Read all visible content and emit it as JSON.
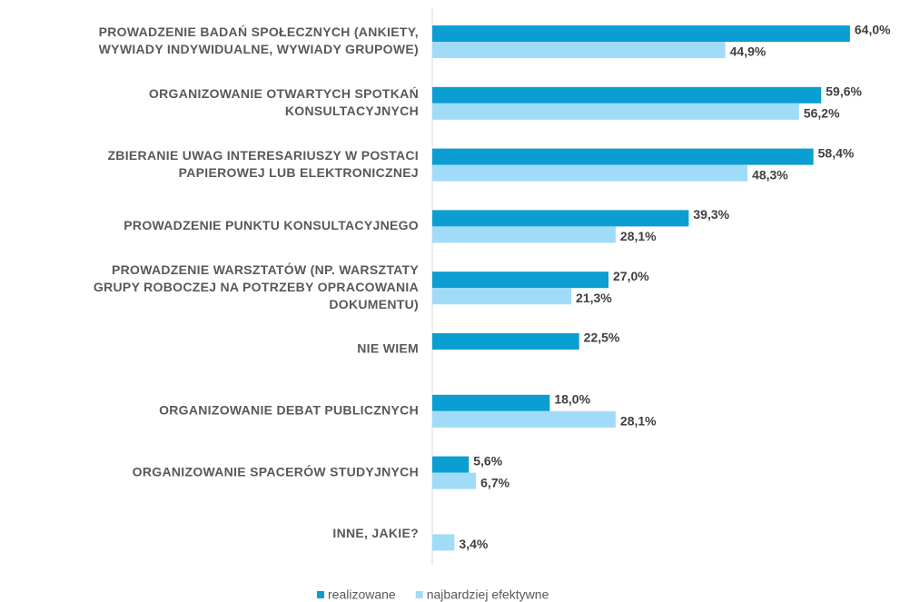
{
  "chart_data": {
    "type": "hbar",
    "categories": [
      [
        "PROWADZENIE BADAŃ SPOŁECZNYCH (ANKIETY,",
        "WYWIADY INDYWIDUALNE, WYWIADY GRUPOWE)"
      ],
      [
        "ORGANIZOWANIE OTWARTYCH SPOTKAŃ",
        "KONSULTACYJNYCH"
      ],
      [
        "ZBIERANIE UWAG INTERESARIUSZY W POSTACI",
        "PAPIEROWEJ LUB ELEKTRONICZNEJ"
      ],
      [
        "PROWADZENIE PUNKTU KONSULTACYJNEGO"
      ],
      [
        "PROWADZENIE WARSZTATÓW (NP. WARSZTATY",
        "GRUPY ROBOCZEJ NA POTRZEBY OPRACOWANIA",
        "DOKUMENTU)"
      ],
      [
        "NIE WIEM"
      ],
      [
        "ORGANIZOWANIE DEBAT PUBLICZNYCH"
      ],
      [
        "ORGANIZOWANIE SPACERÓW STUDYJNYCH"
      ],
      [
        "INNE, JAKIE?"
      ]
    ],
    "series": [
      {
        "name": "realizowane",
        "color": "#0a9ed3",
        "values": [
          64.0,
          59.6,
          58.4,
          39.3,
          27.0,
          22.5,
          18.0,
          5.6,
          null
        ],
        "value_labels": [
          "64,0%",
          "59,6%",
          "58,4%",
          "39,3%",
          "27,0%",
          "22,5%",
          "18,0%",
          "5,6%",
          null
        ]
      },
      {
        "name": "najbardziej efektywne",
        "color": "#a0dcf8",
        "values": [
          44.9,
          56.2,
          48.3,
          28.1,
          21.3,
          null,
          28.1,
          6.7,
          3.4
        ],
        "value_labels": [
          "44,9%",
          "56,2%",
          "48,3%",
          "28,1%",
          "21,3%",
          null,
          "28,1%",
          "6,7%",
          "3,4%"
        ]
      }
    ],
    "xlim": [
      0,
      70
    ],
    "legend": "bottom"
  }
}
